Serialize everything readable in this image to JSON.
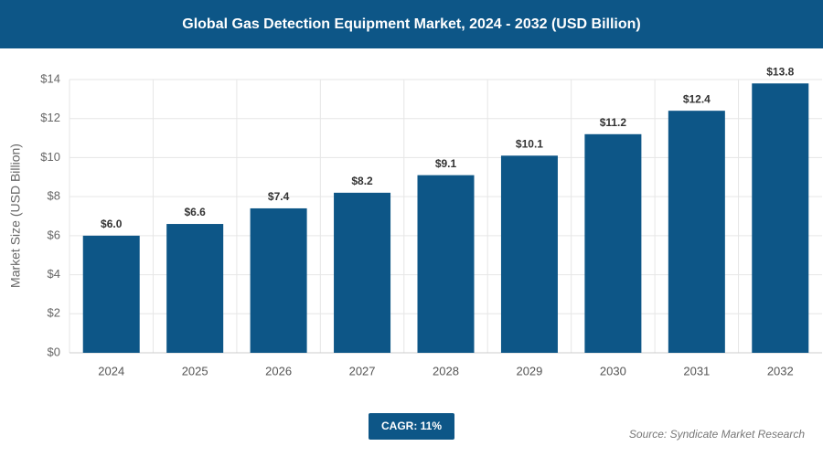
{
  "chart_data": {
    "type": "bar",
    "title": "Global Gas Detection Equipment Market, 2024 - 2032 (USD Billion)",
    "y_axis_label": "Market Size (USD Billion)",
    "categories": [
      "2024",
      "2025",
      "2026",
      "2027",
      "2028",
      "2029",
      "2030",
      "2031",
      "2032"
    ],
    "values": [
      6.0,
      6.6,
      7.4,
      8.2,
      9.1,
      10.1,
      11.2,
      12.4,
      13.8
    ],
    "value_labels": [
      "$6.0",
      "$6.6",
      "$7.4",
      "$8.2",
      "$9.1",
      "$10.1",
      "$11.2",
      "$12.4",
      "$13.8"
    ],
    "color": "#0d5687",
    "ylim": [
      0,
      14
    ],
    "yticks": [
      {
        "value": 0,
        "label": "$0"
      },
      {
        "value": 2,
        "label": "$2"
      },
      {
        "value": 4,
        "label": "$4"
      },
      {
        "value": 6,
        "label": "$6"
      },
      {
        "value": 8,
        "label": "$8"
      },
      {
        "value": 10,
        "label": "$10"
      },
      {
        "value": 12,
        "label": "$12"
      },
      {
        "value": 14,
        "label": "$14"
      }
    ],
    "grid": true,
    "cagr_label": "CAGR: 11%",
    "source": "Source: Syndicate Market Research"
  }
}
